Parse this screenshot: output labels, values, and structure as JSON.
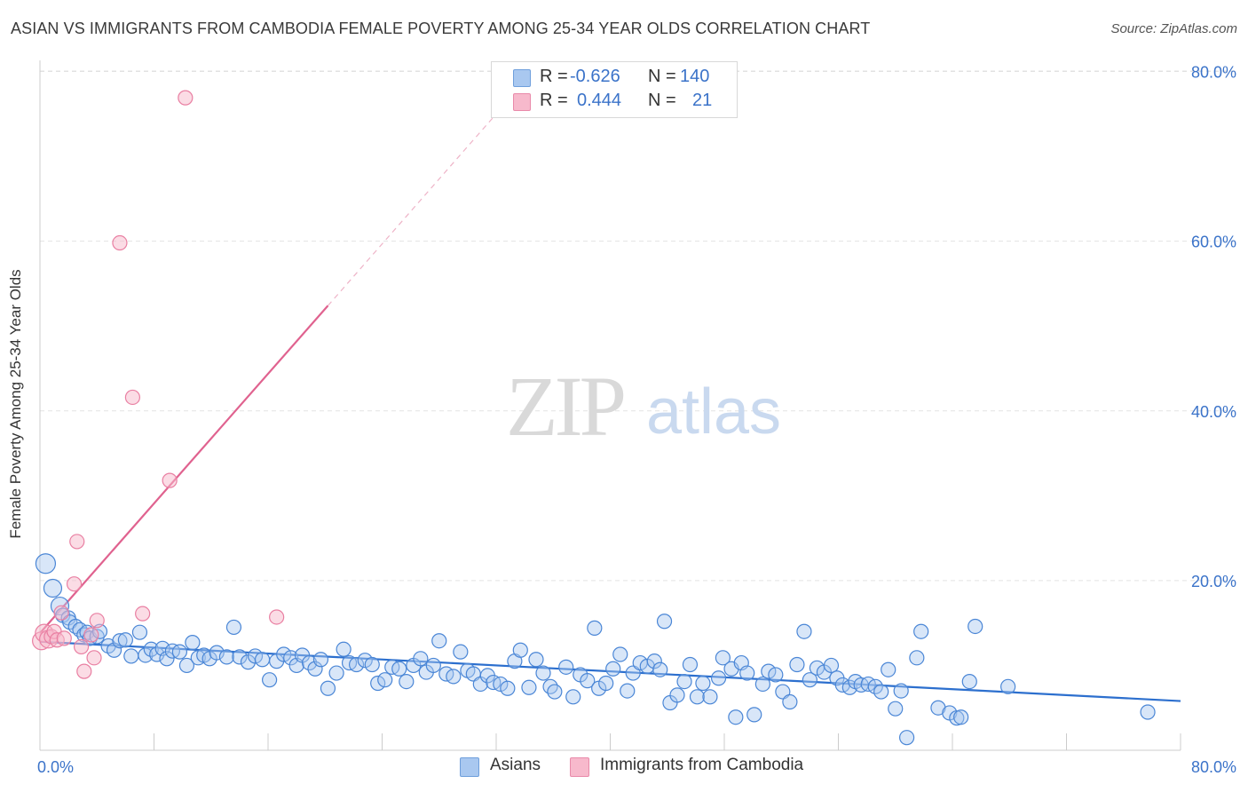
{
  "title": "ASIAN VS IMMIGRANTS FROM CAMBODIA FEMALE POVERTY AMONG 25-34 YEAR OLDS CORRELATION CHART",
  "source": "Source: ZipAtlas.com",
  "watermark": {
    "zip": "ZIP",
    "atlas": "atlas"
  },
  "legend_top": {
    "rows": [
      {
        "r_label": "R =",
        "r_value": "-0.626",
        "n_label": "N =",
        "n_value": "140",
        "color": "#a9c8f0"
      },
      {
        "r_label": "R =",
        "r_value": "0.444",
        "n_label": "N =",
        "n_value": "21",
        "color": "#f7b9cc"
      }
    ]
  },
  "legend_bottom": {
    "asians": "Asians",
    "cambodia": "Immigrants from Cambodia"
  },
  "colors": {
    "blue_fill": "#a9c8f0",
    "blue_stroke": "#4a86d6",
    "blue_line": "#2c6fce",
    "pink_fill": "#f7b9cc",
    "pink_stroke": "#e97fa2",
    "pink_line": "#e0628f",
    "axis_text": "#3b73c9",
    "grid": "#e2e2e2"
  },
  "chart_data": {
    "type": "scatter",
    "title": "ASIAN VS IMMIGRANTS FROM CAMBODIA FEMALE POVERTY AMONG 25-34 YEAR OLDS CORRELATION CHART",
    "xlabel": "",
    "ylabel": "Female Poverty Among 25-34 Year Olds",
    "xlim": [
      0,
      80
    ],
    "ylim": [
      0,
      82
    ],
    "x_ticks": [
      "0.0%",
      "80.0%"
    ],
    "y_ticks": [
      {
        "value": 20,
        "label": "20.0%"
      },
      {
        "value": 40,
        "label": "40.0%"
      },
      {
        "value": 60,
        "label": "60.0%"
      },
      {
        "value": 80,
        "label": "80.0%"
      }
    ],
    "series": [
      {
        "name": "Asians",
        "r": -0.626,
        "n": 140,
        "trend": {
          "x0": 0.0,
          "y0": 12.8,
          "x1": 80.0,
          "y1": 5.8
        },
        "points": [
          [
            0.4,
            22.0
          ],
          [
            0.9,
            19.1
          ],
          [
            1.4,
            17.0
          ],
          [
            1.6,
            15.9
          ],
          [
            2.0,
            15.6
          ],
          [
            2.1,
            15.1
          ],
          [
            2.5,
            14.6
          ],
          [
            2.8,
            14.2
          ],
          [
            3.1,
            13.6
          ],
          [
            3.3,
            13.9
          ],
          [
            3.5,
            13.2
          ],
          [
            4.0,
            13.4
          ],
          [
            4.2,
            14.0
          ],
          [
            4.8,
            12.3
          ],
          [
            5.2,
            11.8
          ],
          [
            5.6,
            12.9
          ],
          [
            6.0,
            13.0
          ],
          [
            6.4,
            11.1
          ],
          [
            7.0,
            13.9
          ],
          [
            7.4,
            11.2
          ],
          [
            7.8,
            11.9
          ],
          [
            8.2,
            11.3
          ],
          [
            8.6,
            12.0
          ],
          [
            8.9,
            10.8
          ],
          [
            9.3,
            11.7
          ],
          [
            9.8,
            11.6
          ],
          [
            10.3,
            10.0
          ],
          [
            10.7,
            12.7
          ],
          [
            11.1,
            10.9
          ],
          [
            11.5,
            11.2
          ],
          [
            11.9,
            10.8
          ],
          [
            12.4,
            11.5
          ],
          [
            13.1,
            11.0
          ],
          [
            13.6,
            14.5
          ],
          [
            14.0,
            11.0
          ],
          [
            14.6,
            10.4
          ],
          [
            15.1,
            11.1
          ],
          [
            15.6,
            10.7
          ],
          [
            16.1,
            8.3
          ],
          [
            16.6,
            10.5
          ],
          [
            17.1,
            11.3
          ],
          [
            17.6,
            10.9
          ],
          [
            18.0,
            10.0
          ],
          [
            18.4,
            11.2
          ],
          [
            18.9,
            10.3
          ],
          [
            19.3,
            9.6
          ],
          [
            19.7,
            10.7
          ],
          [
            20.2,
            7.3
          ],
          [
            20.8,
            9.1
          ],
          [
            21.3,
            11.9
          ],
          [
            21.7,
            10.3
          ],
          [
            22.2,
            10.1
          ],
          [
            22.8,
            10.6
          ],
          [
            23.3,
            10.1
          ],
          [
            23.7,
            7.9
          ],
          [
            24.2,
            8.3
          ],
          [
            24.7,
            9.8
          ],
          [
            25.2,
            9.6
          ],
          [
            25.7,
            8.1
          ],
          [
            26.2,
            10.0
          ],
          [
            26.7,
            10.8
          ],
          [
            27.1,
            9.2
          ],
          [
            27.6,
            10.0
          ],
          [
            28.0,
            12.9
          ],
          [
            28.5,
            9.0
          ],
          [
            29.0,
            8.7
          ],
          [
            29.5,
            11.6
          ],
          [
            30.0,
            9.4
          ],
          [
            30.4,
            9.0
          ],
          [
            30.9,
            7.8
          ],
          [
            31.4,
            8.8
          ],
          [
            31.8,
            8.0
          ],
          [
            32.3,
            7.8
          ],
          [
            32.8,
            7.3
          ],
          [
            33.3,
            10.5
          ],
          [
            33.7,
            11.8
          ],
          [
            34.3,
            7.4
          ],
          [
            34.8,
            10.7
          ],
          [
            35.3,
            9.1
          ],
          [
            35.8,
            7.5
          ],
          [
            36.1,
            6.9
          ],
          [
            36.9,
            9.8
          ],
          [
            37.4,
            6.3
          ],
          [
            37.9,
            8.9
          ],
          [
            38.4,
            8.2
          ],
          [
            38.9,
            14.4
          ],
          [
            39.2,
            7.3
          ],
          [
            39.7,
            7.9
          ],
          [
            40.2,
            9.6
          ],
          [
            40.7,
            11.3
          ],
          [
            41.2,
            7.0
          ],
          [
            41.6,
            9.1
          ],
          [
            42.1,
            10.3
          ],
          [
            42.6,
            9.9
          ],
          [
            43.1,
            10.5
          ],
          [
            43.5,
            9.5
          ],
          [
            43.8,
            15.2
          ],
          [
            44.2,
            5.6
          ],
          [
            44.7,
            6.5
          ],
          [
            45.2,
            8.1
          ],
          [
            45.6,
            10.1
          ],
          [
            46.1,
            6.3
          ],
          [
            46.5,
            7.9
          ],
          [
            47.0,
            6.3
          ],
          [
            47.6,
            8.5
          ],
          [
            47.9,
            10.9
          ],
          [
            48.5,
            9.6
          ],
          [
            48.8,
            3.9
          ],
          [
            49.2,
            10.3
          ],
          [
            49.6,
            9.1
          ],
          [
            50.1,
            4.2
          ],
          [
            50.7,
            7.8
          ],
          [
            51.1,
            9.3
          ],
          [
            51.6,
            8.9
          ],
          [
            52.1,
            6.9
          ],
          [
            52.6,
            5.7
          ],
          [
            53.1,
            10.1
          ],
          [
            53.6,
            14.0
          ],
          [
            54.0,
            8.3
          ],
          [
            54.5,
            9.7
          ],
          [
            55.0,
            9.2
          ],
          [
            55.5,
            10.0
          ],
          [
            55.9,
            8.5
          ],
          [
            56.3,
            7.7
          ],
          [
            56.8,
            7.4
          ],
          [
            57.2,
            8.1
          ],
          [
            57.6,
            7.7
          ],
          [
            58.1,
            7.8
          ],
          [
            58.6,
            7.5
          ],
          [
            59.0,
            6.9
          ],
          [
            59.5,
            9.5
          ],
          [
            60.0,
            4.9
          ],
          [
            60.4,
            7.0
          ],
          [
            60.8,
            1.5
          ],
          [
            61.5,
            10.9
          ],
          [
            61.8,
            14.0
          ],
          [
            63.0,
            5.0
          ],
          [
            63.8,
            4.4
          ],
          [
            64.3,
            3.8
          ],
          [
            64.6,
            3.9
          ],
          [
            65.2,
            8.1
          ],
          [
            65.6,
            14.6
          ],
          [
            67.9,
            7.5
          ],
          [
            77.7,
            4.5
          ]
        ]
      },
      {
        "name": "Immigrants from Cambodia",
        "r": 0.444,
        "n": 21,
        "trend_solid": {
          "x0": 0.0,
          "y0": 13.8,
          "x1": 20.2,
          "y1": 52.4
        },
        "trend_dashed": {
          "x0": 20.2,
          "y0": 52.4,
          "x1": 31.9,
          "y1": 74.8
        },
        "points": [
          [
            0.1,
            12.9
          ],
          [
            0.3,
            13.8
          ],
          [
            0.6,
            13.1
          ],
          [
            0.8,
            13.4
          ],
          [
            1.0,
            14.0
          ],
          [
            1.2,
            13.0
          ],
          [
            1.5,
            16.2
          ],
          [
            1.7,
            13.2
          ],
          [
            2.4,
            19.6
          ],
          [
            2.6,
            24.6
          ],
          [
            2.9,
            12.2
          ],
          [
            3.1,
            9.3
          ],
          [
            3.6,
            13.6
          ],
          [
            3.8,
            10.9
          ],
          [
            4.0,
            15.3
          ],
          [
            5.6,
            59.8
          ],
          [
            6.5,
            41.6
          ],
          [
            7.2,
            16.1
          ],
          [
            9.1,
            31.8
          ],
          [
            10.2,
            76.9
          ],
          [
            16.6,
            15.7
          ]
        ]
      }
    ]
  }
}
